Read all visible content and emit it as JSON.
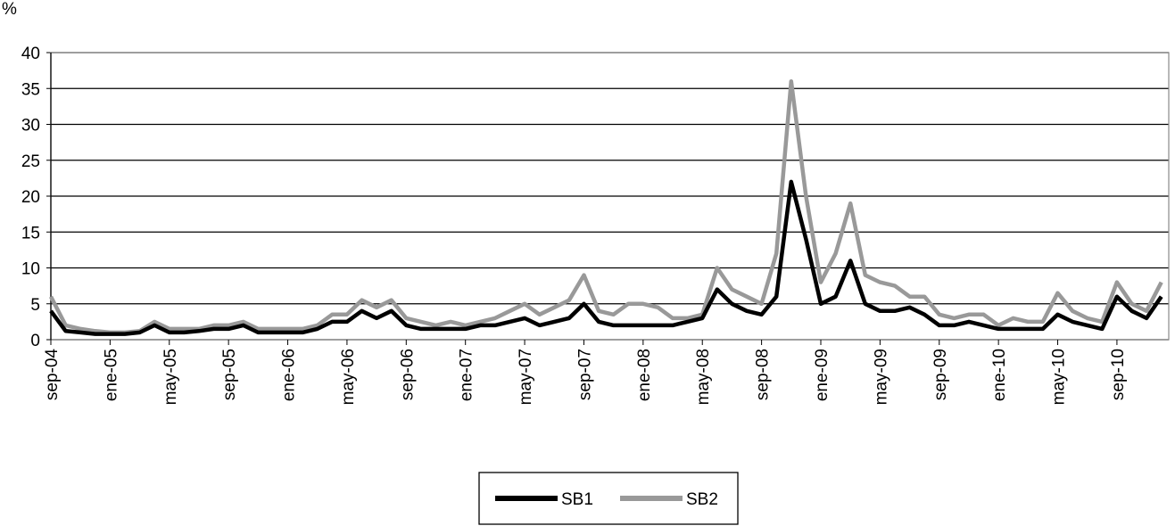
{
  "chart_data": {
    "type": "line",
    "y_label": "%",
    "categories": [
      "sep-04",
      null,
      null,
      null,
      "ene-05",
      null,
      null,
      null,
      "may-05",
      null,
      null,
      null,
      "sep-05",
      null,
      null,
      null,
      "ene-06",
      null,
      null,
      null,
      "may-06",
      null,
      null,
      null,
      "sep-06",
      null,
      null,
      null,
      "ene-07",
      null,
      null,
      null,
      "may-07",
      null,
      null,
      null,
      "sep-07",
      null,
      null,
      null,
      "ene-08",
      null,
      null,
      null,
      "may-08",
      null,
      null,
      null,
      "sep-08",
      null,
      null,
      null,
      "ene-09",
      null,
      null,
      null,
      "may-09",
      null,
      null,
      null,
      "sep-09",
      null,
      null,
      null,
      "ene-10",
      null,
      null,
      null,
      "may-10",
      null,
      null,
      null,
      "sep-10",
      null,
      null,
      null
    ],
    "series": [
      {
        "name": "SB1",
        "color": "#000000",
        "values": [
          4,
          1.2,
          1,
          0.8,
          0.8,
          0.8,
          1,
          2,
          1,
          1,
          1.2,
          1.5,
          1.5,
          2,
          1,
          1,
          1,
          1,
          1.5,
          2.5,
          2.5,
          4,
          3,
          4,
          2,
          1.5,
          1.5,
          1.5,
          1.5,
          2,
          2,
          2.5,
          3,
          2,
          2.5,
          3,
          5,
          2.5,
          2,
          2,
          2,
          2,
          2,
          2.5,
          3,
          7,
          5,
          4,
          3.5,
          6,
          22,
          14,
          5,
          6,
          11,
          5,
          4,
          4,
          4.5,
          3.5,
          2,
          2,
          2.5,
          2,
          1.5,
          1.5,
          1.5,
          1.5,
          3.5,
          2.5,
          2,
          1.5,
          6,
          4,
          3,
          6
        ]
      },
      {
        "name": "SB2",
        "color": "#999999",
        "values": [
          6,
          2,
          1.5,
          1.2,
          1,
          1,
          1.2,
          2.5,
          1.5,
          1.5,
          1.5,
          2,
          2,
          2.5,
          1.5,
          1.5,
          1.5,
          1.5,
          2,
          3.5,
          3.5,
          5.5,
          4.5,
          5.5,
          3,
          2.5,
          2,
          2.5,
          2,
          2.5,
          3,
          4,
          5,
          3.5,
          4.5,
          5.5,
          9,
          4,
          3.5,
          5,
          5,
          4.5,
          3,
          3,
          3.5,
          10,
          7,
          6,
          5,
          12,
          36,
          20,
          8,
          12,
          19,
          9,
          8,
          7.5,
          6,
          6,
          3.5,
          3,
          3.5,
          3.5,
          2,
          3,
          2.5,
          2.5,
          6.5,
          4,
          3,
          2.5,
          8,
          5,
          4,
          8
        ]
      }
    ],
    "ylim": [
      0,
      40
    ],
    "yticks": [
      0,
      5,
      10,
      15,
      20,
      25,
      30,
      35,
      40
    ],
    "grid": true,
    "legend": "bottom"
  }
}
